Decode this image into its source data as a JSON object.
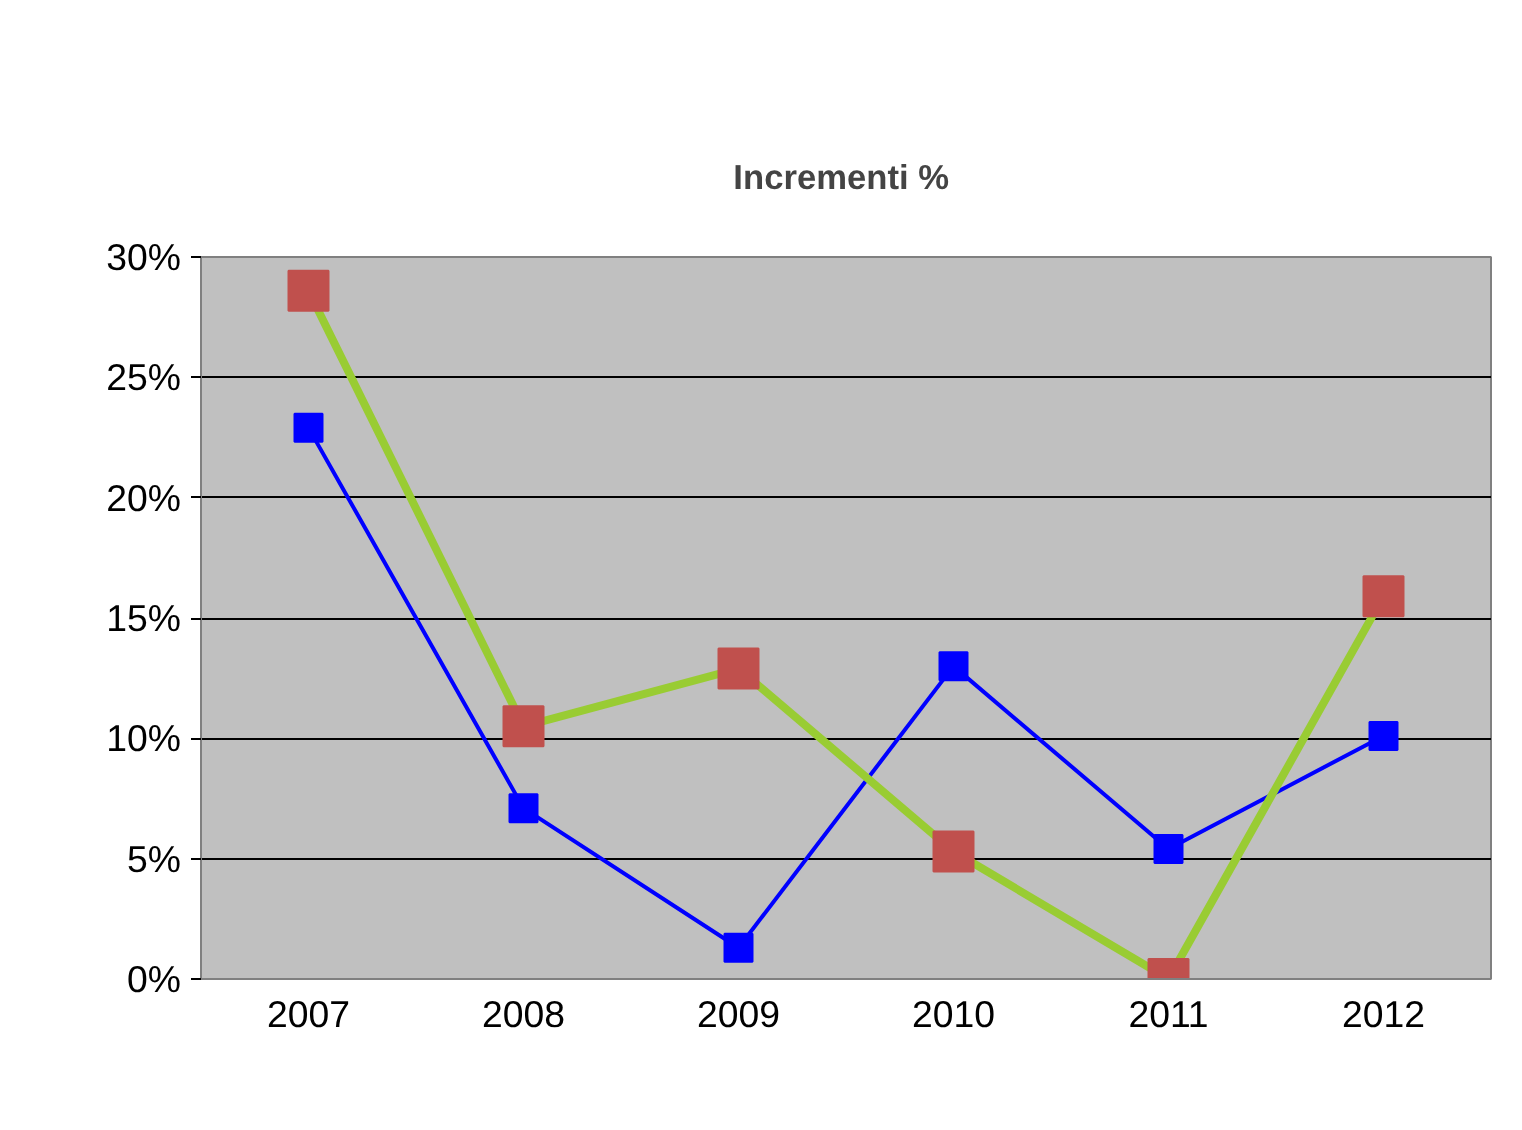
{
  "chart_data": {
    "type": "line",
    "title": "Incrementi  %",
    "categories": [
      "2007",
      "2008",
      "2009",
      "2010",
      "2011",
      "2012"
    ],
    "series": [
      {
        "color": "#0000ff",
        "values": [
          22.9,
          7.1,
          1.3,
          13.0,
          5.4,
          10.1
        ]
      },
      {
        "color": "#99cc33",
        "colors": [
          "#c0504d",
          "#c0504d",
          "#c0504d",
          "#c0504d",
          "#c0504d",
          "#c0504d"
        ],
        "values": [
          28.6,
          10.5,
          12.9,
          5.3,
          0,
          15.9
        ]
      }
    ],
    "ylim": [
      0,
      30
    ],
    "yticks": [
      {
        "value": 0,
        "label": "0%"
      },
      {
        "value": 5,
        "label": "5%"
      },
      {
        "value": 10,
        "label": "10%"
      },
      {
        "value": 15,
        "label": "15%"
      },
      {
        "value": 20,
        "label": "20%"
      },
      {
        "value": 25,
        "label": "25%"
      },
      {
        "value": 30,
        "label": "30%"
      }
    ],
    "grid": "y",
    "marker": "square"
  }
}
